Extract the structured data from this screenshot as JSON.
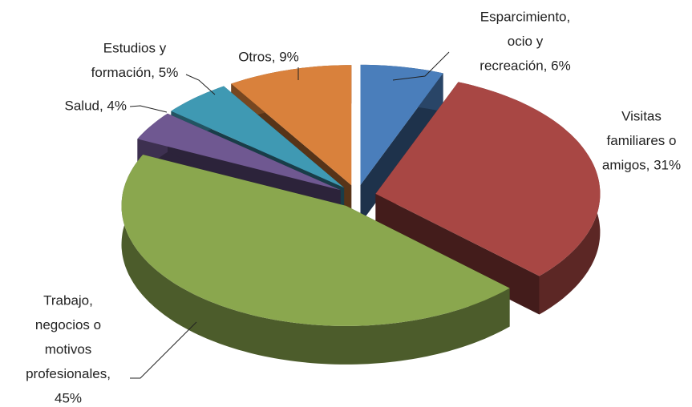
{
  "chart_data": {
    "type": "pie3d",
    "labels": [
      [
        "Esparcimiento,",
        "ocio y",
        "recreación, 6%"
      ],
      [
        "Visitas",
        "familiares o",
        "amigos, 31%"
      ],
      [
        "Trabajo,",
        "negocios o",
        "motivos",
        "profesionales,",
        "45%"
      ],
      [
        "Salud, 4%"
      ],
      [
        "Estudios y",
        "formación, 5%"
      ],
      [
        "Otros, 9%"
      ]
    ],
    "values": [
      6,
      31,
      45,
      4,
      5,
      9
    ],
    "colors": [
      "#4a7ebb",
      "#a84744",
      "#8aa74e",
      "#6f5891",
      "#3f99b3",
      "#d9813c"
    ]
  }
}
